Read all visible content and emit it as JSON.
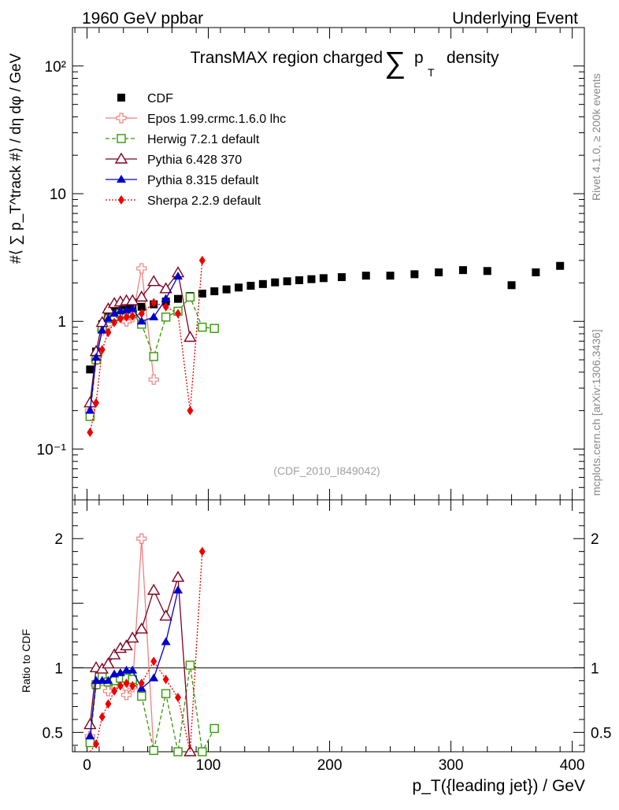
{
  "header": {
    "left": "1960 GeV ppbar",
    "right": "Underlying Event",
    "plot_title": "TransMAX region charged",
    "title_sum": "∑",
    "title_p": "p",
    "title_sub": "T",
    "title_tail": "density",
    "analysis_id": "(CDF_2010_I849042)"
  },
  "side_labels": {
    "rivet": "Rivet 4.1.0, ≥ 200k events",
    "mcplots": "mcplots.cern.ch [arXiv:1306.3436]"
  },
  "axes": {
    "main_ylabel": "#⟨ ∑ p_T^track #⟩ / dη dφ / GeV",
    "ratio_ylabel": "Ratio to CDF",
    "xlabel": "p_T({leading jet}) / GeV"
  },
  "chart_data": {
    "type": "scatter",
    "x_range": [
      -12,
      410
    ],
    "y_main_range": [
      0.04,
      200
    ],
    "y_main_scale": "log",
    "y_ratio_range": [
      0.35,
      2.3
    ],
    "x_ticks": [
      {
        "v": 0,
        "label": "0"
      },
      {
        "v": 100,
        "label": "100"
      },
      {
        "v": 200,
        "label": "200"
      },
      {
        "v": 300,
        "label": "300"
      },
      {
        "v": 400,
        "label": "400"
      }
    ],
    "y_main_ticks": [
      {
        "v": 0.1,
        "label": "10⁻¹"
      },
      {
        "v": 1,
        "label": "1"
      },
      {
        "v": 10,
        "label": "10"
      },
      {
        "v": 100,
        "label": "10²"
      }
    ],
    "y_ratio_ticks": [
      {
        "v": 0.5,
        "label": "0.5"
      },
      {
        "v": 1,
        "label": "1"
      },
      {
        "v": 2,
        "label": "2"
      }
    ],
    "legend_position": "top-left",
    "series": [
      {
        "name": "CDF",
        "color": "#000000",
        "marker": "square-filled",
        "line": "none",
        "x": [
          2.5,
          7.5,
          12.5,
          17.5,
          22.5,
          27.5,
          32.5,
          37.5,
          45,
          55,
          65,
          75,
          85,
          95,
          105,
          115,
          125,
          135,
          145,
          155,
          165,
          175,
          185,
          195,
          210,
          230,
          250,
          270,
          290,
          310,
          330,
          350,
          370,
          390
        ],
        "y": [
          0.42,
          0.58,
          0.95,
          1.18,
          1.22,
          1.25,
          1.26,
          1.27,
          1.3,
          1.36,
          1.43,
          1.5,
          1.58,
          1.65,
          1.72,
          1.78,
          1.84,
          1.9,
          1.96,
          2.02,
          2.06,
          2.1,
          2.14,
          2.18,
          2.22,
          2.28,
          2.28,
          2.34,
          2.42,
          2.52,
          2.48,
          1.92,
          2.42,
          2.72
        ]
      },
      {
        "name": "Epos 1.99.crmc.1.6.0 lhc",
        "color": "#f08080",
        "marker": "cross-open",
        "line": "solid",
        "x": [
          2.5,
          7.5,
          12.5,
          17.5,
          22.5,
          27.5,
          32.5,
          37.5,
          45,
          55
        ],
        "y": [
          0.2,
          0.5,
          0.85,
          0.95,
          1.05,
          1.1,
          1.0,
          1.08,
          2.6,
          0.35
        ],
        "ratio": [
          0.47,
          0.87,
          0.9,
          0.82,
          0.86,
          0.88,
          0.79,
          0.85,
          2.0,
          0.26
        ]
      },
      {
        "name": "Herwig 7.2.1 default",
        "color": "#339900",
        "marker": "square-open",
        "line": "dashed",
        "x": [
          2.5,
          7.5,
          12.5,
          17.5,
          22.5,
          27.5,
          32.5,
          37.5,
          45,
          55,
          65,
          75,
          85,
          95,
          105
        ],
        "y": [
          0.18,
          0.5,
          0.88,
          1.05,
          1.1,
          1.15,
          1.15,
          1.15,
          0.95,
          0.53,
          1.08,
          1.2,
          1.55,
          0.9,
          0.88
        ],
        "ratio": [
          0.42,
          0.87,
          0.93,
          0.89,
          0.9,
          0.92,
          0.92,
          0.91,
          0.78,
          0.36,
          0.8,
          0.35,
          1.02,
          0.35,
          0.53
        ]
      },
      {
        "name": "Pythia 6.428 370",
        "color": "#800020",
        "marker": "triangle-open",
        "line": "solid",
        "x": [
          2.5,
          7.5,
          12.5,
          17.5,
          22.5,
          27.5,
          32.5,
          37.5,
          45,
          55,
          65,
          75,
          85
        ],
        "y": [
          0.23,
          0.58,
          0.98,
          1.25,
          1.38,
          1.42,
          1.45,
          1.45,
          1.55,
          2.05,
          1.8,
          2.4,
          0.75
        ],
        "ratio": [
          0.56,
          1.0,
          0.99,
          1.03,
          1.1,
          1.15,
          1.17,
          1.23,
          1.3,
          1.6,
          1.4,
          1.7,
          0.35
        ]
      },
      {
        "name": "Pythia 8.315 default",
        "color": "#0000cc",
        "marker": "triangle-filled",
        "line": "solid",
        "x": [
          2.5,
          7.5,
          12.5,
          17.5,
          22.5,
          27.5,
          32.5,
          37.5,
          45,
          55,
          65,
          75
        ],
        "y": [
          0.2,
          0.52,
          0.85,
          1.05,
          1.15,
          1.2,
          1.22,
          1.25,
          1.0,
          1.08,
          1.5,
          2.25
        ],
        "ratio": [
          0.47,
          0.9,
          0.9,
          0.9,
          0.95,
          0.96,
          0.98,
          0.98,
          0.84,
          0.92,
          1.2,
          1.6
        ]
      },
      {
        "name": "Sherpa 2.2.9 default",
        "color": "#ee0000",
        "marker": "diamond-filled",
        "line": "dotted",
        "x": [
          2.5,
          7.5,
          12.5,
          17.5,
          22.5,
          27.5,
          32.5,
          37.5,
          45,
          55,
          65,
          75,
          85,
          95
        ],
        "y": [
          0.135,
          0.23,
          0.6,
          0.82,
          0.98,
          1.05,
          1.08,
          1.1,
          1.15,
          1.4,
          1.3,
          1.15,
          0.2,
          3.0
        ],
        "ratio": [
          0.3,
          0.41,
          0.62,
          0.72,
          0.82,
          0.86,
          0.88,
          0.86,
          0.88,
          1.05,
          0.91,
          0.77,
          0.13,
          1.9
        ]
      }
    ]
  }
}
